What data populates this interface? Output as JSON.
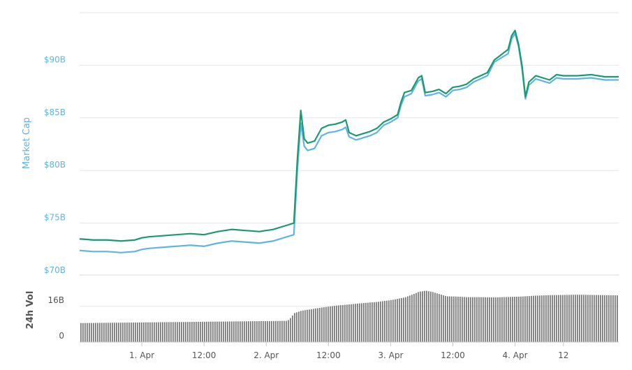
{
  "chart_data": [
    {
      "type": "line",
      "ylabel": "Market Cap",
      "ylim": [
        70,
        95
      ],
      "y_ticks": [
        {
          "value": 70,
          "label": "$70B"
        },
        {
          "value": 75,
          "label": "$75B"
        },
        {
          "value": 80,
          "label": "$80B"
        },
        {
          "value": 85,
          "label": "$85B"
        },
        {
          "value": 90,
          "label": "$90B"
        }
      ],
      "xlim": [
        0,
        78
      ],
      "x_ticks": [
        {
          "value": 9,
          "label": "1. Apr"
        },
        {
          "value": 18,
          "label": "12:00"
        },
        {
          "value": 27,
          "label": "2. Apr"
        },
        {
          "value": 36,
          "label": "12:00"
        },
        {
          "value": 45,
          "label": "3. Apr"
        },
        {
          "value": 54,
          "label": "12:00"
        },
        {
          "value": 63,
          "label": "4. Apr"
        },
        {
          "value": 70,
          "label": "12"
        }
      ],
      "grid": true,
      "series": [
        {
          "color": "#1a9a6e",
          "x": [
            0,
            2,
            4,
            6,
            8,
            9,
            10,
            12,
            14,
            16,
            18,
            20,
            22,
            24,
            26,
            28,
            30,
            31,
            31.5,
            32,
            32.5,
            33,
            34,
            35,
            36,
            37,
            38,
            38.5,
            39,
            40,
            41,
            42,
            43,
            44,
            45,
            46,
            46.5,
            47,
            48,
            49,
            49.5,
            50,
            51,
            52,
            53,
            54,
            55,
            56,
            57,
            58,
            59,
            60,
            61,
            62,
            62.5,
            63,
            63.5,
            64,
            64.5,
            65,
            66,
            67,
            68,
            69,
            70,
            72,
            74,
            76,
            78
          ],
          "values": [
            73.5,
            73.4,
            73.4,
            73.3,
            73.4,
            73.6,
            73.7,
            73.8,
            73.9,
            74.0,
            73.9,
            74.2,
            74.4,
            74.3,
            74.2,
            74.4,
            74.8,
            75.0,
            81.0,
            85.7,
            83.0,
            82.6,
            82.8,
            84.0,
            84.3,
            84.4,
            84.6,
            84.8,
            83.6,
            83.3,
            83.5,
            83.7,
            84.0,
            84.6,
            84.9,
            85.3,
            86.5,
            87.4,
            87.6,
            88.8,
            89.0,
            87.4,
            87.5,
            87.7,
            87.3,
            87.9,
            88.0,
            88.2,
            88.7,
            89.0,
            89.3,
            90.5,
            91.0,
            91.5,
            92.8,
            93.3,
            92.0,
            90.0,
            87.0,
            88.4,
            89.0,
            88.8,
            88.6,
            89.1,
            89.0,
            89.0,
            89.1,
            88.9,
            88.9
          ]
        },
        {
          "color": "#5fb4e3",
          "x": [
            0,
            2,
            4,
            6,
            8,
            9,
            10,
            12,
            14,
            16,
            18,
            20,
            22,
            24,
            26,
            28,
            30,
            31,
            31.5,
            32,
            32.5,
            33,
            34,
            35,
            36,
            37,
            38,
            38.5,
            39,
            40,
            41,
            42,
            43,
            44,
            45,
            46,
            46.5,
            47,
            48,
            49,
            49.5,
            50,
            51,
            52,
            53,
            54,
            55,
            56,
            57,
            58,
            59,
            60,
            61,
            62,
            62.5,
            63,
            63.5,
            64,
            64.5,
            65,
            66,
            67,
            68,
            69,
            70,
            72,
            74,
            76,
            78
          ],
          "values": [
            72.4,
            72.3,
            72.3,
            72.2,
            72.3,
            72.5,
            72.6,
            72.7,
            72.8,
            72.9,
            72.8,
            73.1,
            73.3,
            73.2,
            73.1,
            73.3,
            73.7,
            73.9,
            80.0,
            84.5,
            82.3,
            81.9,
            82.1,
            83.3,
            83.6,
            83.7,
            83.9,
            84.1,
            83.2,
            82.9,
            83.1,
            83.3,
            83.6,
            84.3,
            84.6,
            85.0,
            86.2,
            87.0,
            87.3,
            88.5,
            88.7,
            87.1,
            87.2,
            87.4,
            87.0,
            87.6,
            87.7,
            87.9,
            88.4,
            88.7,
            89.0,
            90.3,
            90.7,
            91.1,
            92.5,
            93.0,
            91.8,
            89.7,
            86.8,
            88.1,
            88.7,
            88.5,
            88.3,
            88.8,
            88.7,
            88.7,
            88.8,
            88.6,
            88.6
          ]
        }
      ]
    },
    {
      "type": "bar",
      "ylabel": "24h Vol",
      "ylim": [
        0,
        30
      ],
      "y_ticks": [
        {
          "value": 0,
          "label": "0"
        },
        {
          "value": 16,
          "label": "16B"
        }
      ],
      "grid": true,
      "color": "#7a7a7a",
      "x": [
        0,
        30,
        30.5,
        31,
        31.5,
        32,
        33,
        35,
        37,
        40,
        43,
        45,
        47,
        48,
        49,
        50,
        51,
        53,
        55,
        56,
        58,
        60,
        62,
        64,
        66,
        68,
        70,
        72,
        74,
        76,
        78
      ],
      "values": [
        8.5,
        9.5,
        11,
        13,
        13.5,
        14,
        14.5,
        15.5,
        16.3,
        17.2,
        18.0,
        18.8,
        20.0,
        21.2,
        22.5,
        23.0,
        22.4,
        20.5,
        20.3,
        20.1,
        20.1,
        20.0,
        20.2,
        20.4,
        20.8,
        21.0,
        21.1,
        21.2,
        21.1,
        21.0,
        20.9
      ]
    }
  ]
}
